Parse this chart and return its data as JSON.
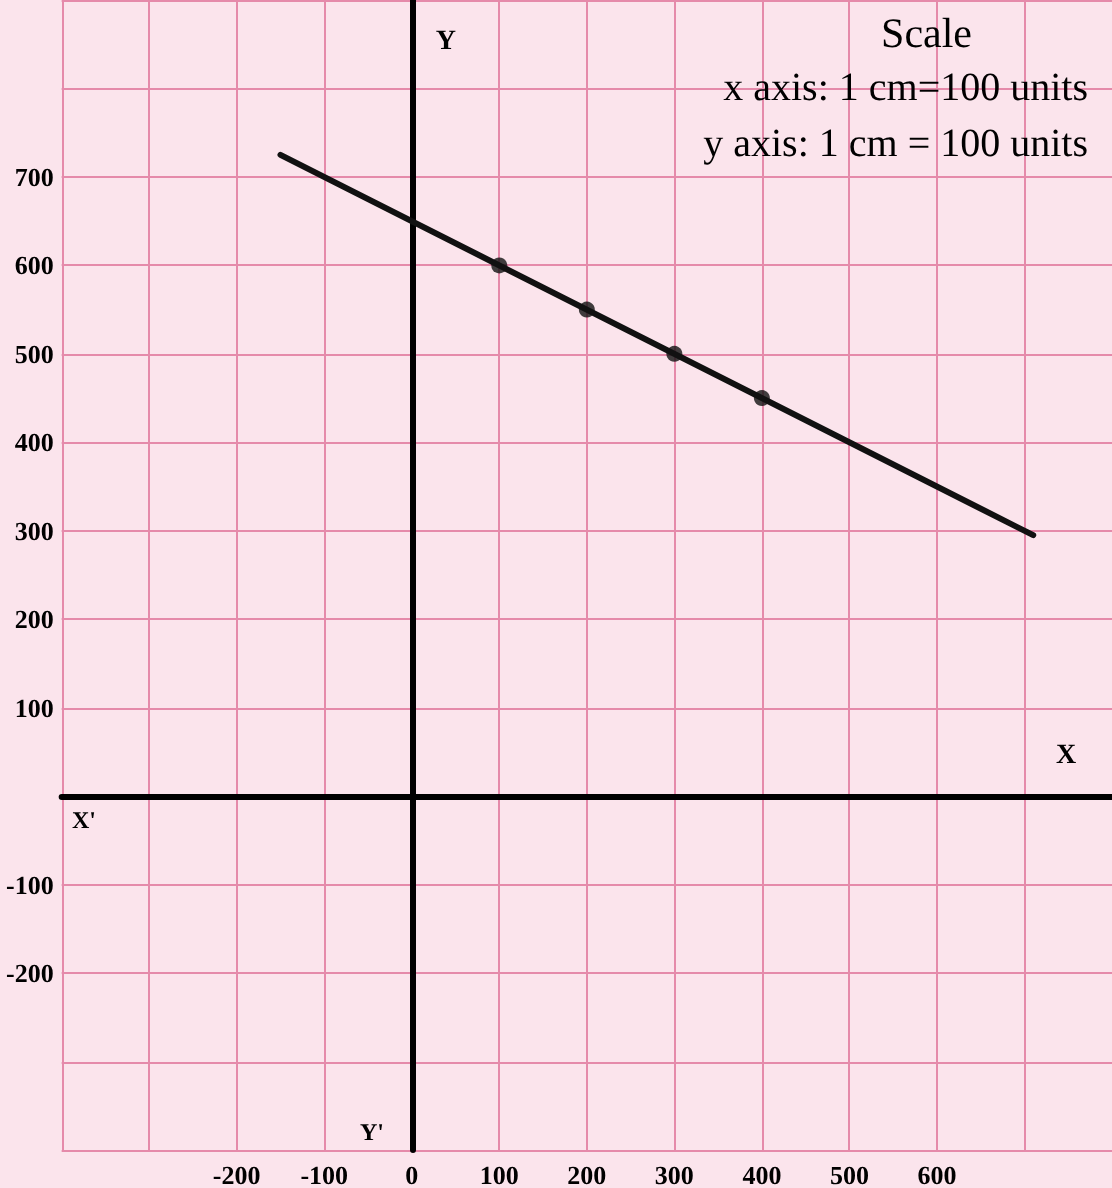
{
  "chart_data": {
    "type": "line",
    "xlabel": "X",
    "ylabel": "Y",
    "annotations": [
      "Scale",
      "x axis: 1 cm=100 units",
      "y axis: 1 cm = 100 units",
      "X'",
      "Y'"
    ],
    "series": [
      {
        "color": "#111111",
        "marker": "none",
        "x": [
          -150,
          710
        ],
        "values": [
          725,
          295
        ]
      },
      {
        "type": "scatter",
        "color": "#111111",
        "marker": "circle",
        "x": [
          100,
          200,
          300,
          400
        ],
        "values": [
          600,
          550,
          500,
          450
        ]
      }
    ],
    "xlim": [
      -400,
      800
    ],
    "ylim": [
      -400,
      900
    ],
    "xticks": [
      -200,
      -100,
      0,
      100,
      200,
      300,
      400,
      500,
      600
    ],
    "yticks": [
      -200,
      -100,
      100,
      200,
      300,
      400,
      500,
      600,
      700
    ],
    "grid": true,
    "line_style": "solid"
  }
}
